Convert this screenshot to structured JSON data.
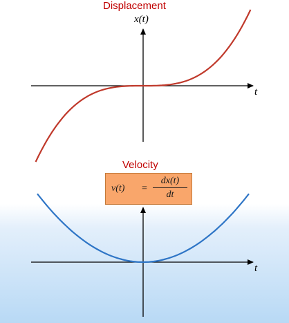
{
  "displacement": {
    "title": "Displacement",
    "y_axis_label": "x(t)",
    "x_axis_label": "t",
    "curve_color": "#c0392b"
  },
  "velocity": {
    "title": "Velocity",
    "x_axis_label": "t",
    "curve_color": "#2e75c6",
    "formula": {
      "lhs": "v(t)",
      "equals": "=",
      "numerator": "dx(t)",
      "denominator": "dt"
    },
    "formula_box_color": "#f9a66b"
  },
  "axis_color": "#000000",
  "title_color": "#c00000"
}
